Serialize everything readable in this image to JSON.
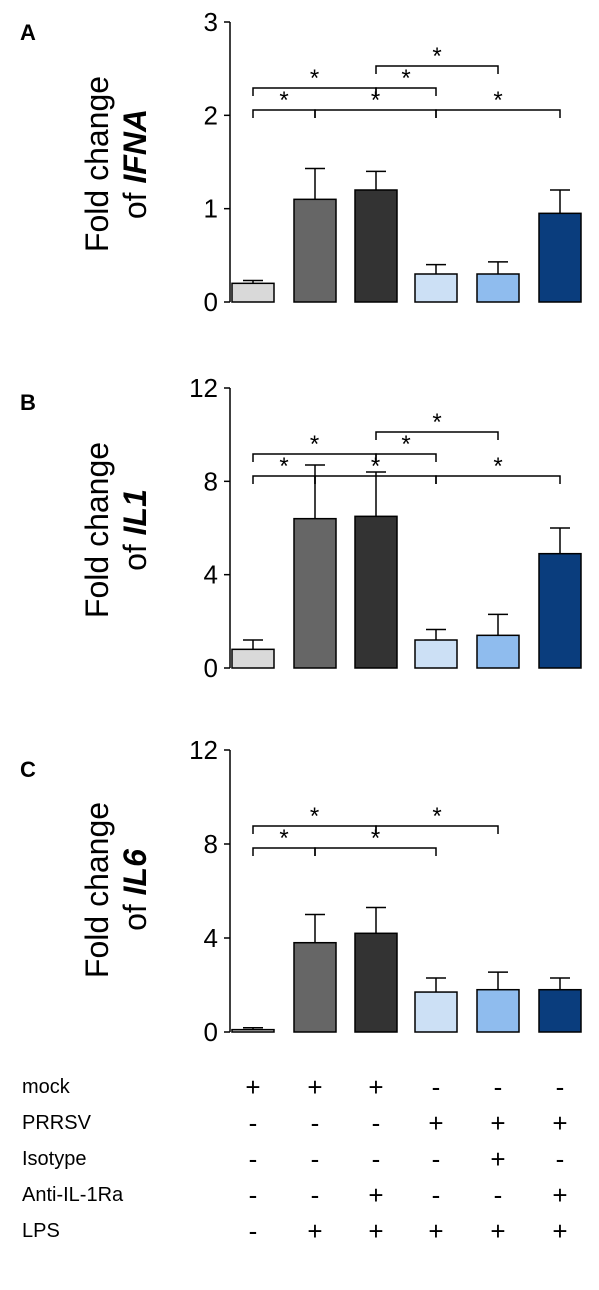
{
  "chart_data": [
    {
      "type": "bar",
      "panel_label": "A",
      "ylabel_line1": "Fold change",
      "ylabel_line2_prefix": "of ",
      "ylabel_gene": "IFNA",
      "ylim": [
        0,
        3
      ],
      "yticks": [
        "0",
        "1",
        "2",
        "3"
      ],
      "values": [
        0.2,
        1.1,
        1.2,
        0.3,
        0.3,
        0.95
      ],
      "errors": [
        0.03,
        0.33,
        0.2,
        0.1,
        0.13,
        0.25
      ],
      "significance": [
        {
          "from": 0,
          "to": 1,
          "label": "*"
        },
        {
          "from": 0,
          "to": 2,
          "label": "*"
        },
        {
          "from": 1,
          "to": 3,
          "label": "*"
        },
        {
          "from": 2,
          "to": 3,
          "label": "*"
        },
        {
          "from": 2,
          "to": 4,
          "label": "*"
        },
        {
          "from": 3,
          "to": 5,
          "label": "*"
        }
      ]
    },
    {
      "type": "bar",
      "panel_label": "B",
      "ylabel_line1": "Fold change",
      "ylabel_line2_prefix": "of ",
      "ylabel_gene": "IL1",
      "ylim": [
        0,
        12
      ],
      "yticks": [
        "0",
        "4",
        "8",
        "12"
      ],
      "values": [
        0.8,
        6.4,
        6.5,
        1.2,
        1.4,
        4.9
      ],
      "errors": [
        0.4,
        2.3,
        1.9,
        0.45,
        0.9,
        1.1
      ],
      "significance": [
        {
          "from": 0,
          "to": 1,
          "label": "*"
        },
        {
          "from": 0,
          "to": 2,
          "label": "*"
        },
        {
          "from": 1,
          "to": 3,
          "label": "*"
        },
        {
          "from": 2,
          "to": 3,
          "label": "*"
        },
        {
          "from": 2,
          "to": 4,
          "label": "*"
        },
        {
          "from": 3,
          "to": 5,
          "label": "*"
        }
      ]
    },
    {
      "type": "bar",
      "panel_label": "C",
      "ylabel_line1": "Fold change",
      "ylabel_line2_prefix": "of ",
      "ylabel_gene": "IL6",
      "ylim": [
        0,
        12
      ],
      "yticks": [
        "0",
        "4",
        "8",
        "12"
      ],
      "values": [
        0.1,
        3.8,
        4.2,
        1.7,
        1.8,
        1.8
      ],
      "errors": [
        0.08,
        1.2,
        1.1,
        0.6,
        0.75,
        0.5
      ],
      "significance": [
        {
          "from": 0,
          "to": 1,
          "label": "*"
        },
        {
          "from": 0,
          "to": 2,
          "label": "*"
        },
        {
          "from": 1,
          "to": 3,
          "label": "*"
        },
        {
          "from": 2,
          "to": 4,
          "label": "*"
        }
      ]
    }
  ],
  "bar_colors": [
    "#d9d9d9",
    "#666666",
    "#333333",
    "#cce0f5",
    "#8fbcee",
    "#0a3d7d"
  ],
  "conditions": [
    {
      "label": "mock",
      "signs": [
        "+",
        "+",
        "+",
        "-",
        "-",
        "-"
      ]
    },
    {
      "label": "PRRSV",
      "signs": [
        "-",
        "-",
        "-",
        "+",
        "+",
        "+"
      ]
    },
    {
      "label": "Isotype",
      "signs": [
        "-",
        "-",
        "-",
        "-",
        "+",
        "-"
      ]
    },
    {
      "label": "Anti-IL-1Ra",
      "signs": [
        "-",
        "-",
        "+",
        "-",
        "-",
        "+"
      ]
    },
    {
      "label": "LPS",
      "signs": [
        "-",
        "+",
        "+",
        "+",
        "+",
        "+"
      ]
    }
  ]
}
